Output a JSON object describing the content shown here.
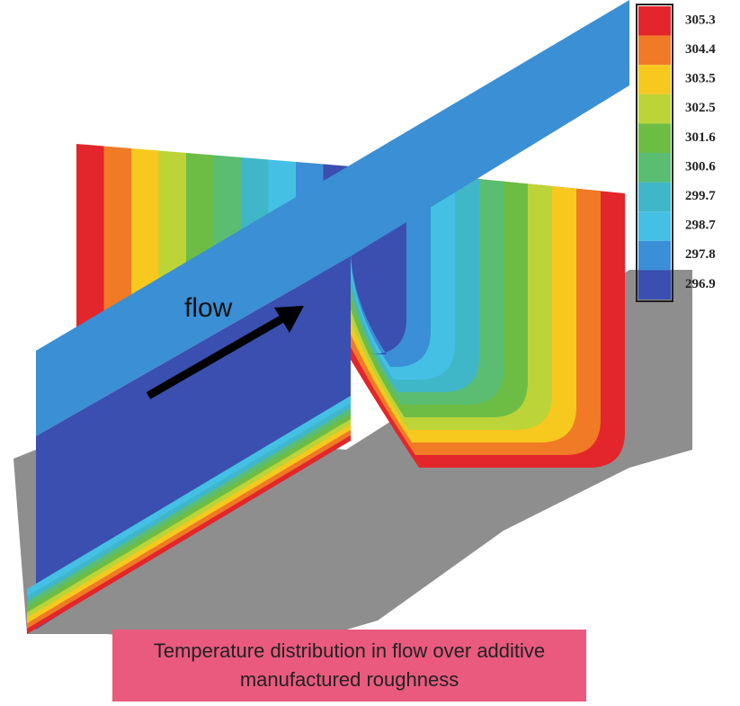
{
  "legend": {
    "levels": [
      {
        "label": "305.3",
        "color": "#e2262b"
      },
      {
        "label": "304.4",
        "color": "#f07a26"
      },
      {
        "label": "303.5",
        "color": "#f7c81e"
      },
      {
        "label": "302.5",
        "color": "#bcd437"
      },
      {
        "label": "301.6",
        "color": "#6dbd45"
      },
      {
        "label": "300.6",
        "color": "#5bbd72"
      },
      {
        "label": "299.7",
        "color": "#3fb7c9"
      },
      {
        "label": "298.7",
        "color": "#44c0e4"
      },
      {
        "label": "297.8",
        "color": "#3a8fd6"
      },
      {
        "label": "296.9",
        "color": "#3a4fb0"
      }
    ]
  },
  "annotation": "flow",
  "caption": "Temperature distribution in flow over additive manufactured roughness"
}
